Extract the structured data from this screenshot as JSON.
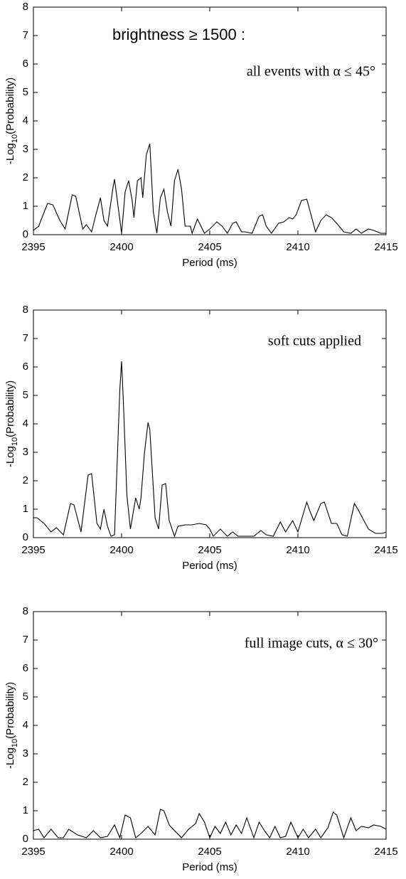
{
  "chart_data": [
    {
      "type": "line",
      "color": "#000000",
      "xlabel": "Period (ms)",
      "ylabel": [
        "-Log",
        "10",
        "(Probability)"
      ],
      "annotations": [
        "brightness ≥ 1500 :",
        "all events with α ≤ 45°"
      ],
      "xlim": [
        2395,
        2415
      ],
      "ylim": [
        0,
        8
      ],
      "xticks": [
        2395,
        2400,
        2405,
        2410,
        2415
      ],
      "yticks": [
        0,
        1,
        2,
        3,
        4,
        5,
        6,
        7,
        8
      ],
      "x": [
        2395,
        2395.3,
        2395.8,
        2396.1,
        2396.5,
        2396.8,
        2397.2,
        2397.4,
        2397.8,
        2398.0,
        2398.3,
        2398.5,
        2398.8,
        2399.0,
        2399.2,
        2399.5,
        2399.6,
        2399.8,
        2400.0,
        2400.2,
        2400.4,
        2400.6,
        2400.7,
        2400.9,
        2401.1,
        2401.2,
        2401.4,
        2401.6,
        2401.8,
        2402.0,
        2402.2,
        2402.4,
        2402.6,
        2402.8,
        2403.0,
        2403.2,
        2403.4,
        2403.6,
        2403.9,
        2404.0,
        2404.3,
        2404.5,
        2404.7,
        2405.0,
        2405.4,
        2405.7,
        2406.0,
        2406.3,
        2406.5,
        2406.8,
        2407.0,
        2407.4,
        2407.8,
        2408.0,
        2408.2,
        2408.5,
        2408.9,
        2409.2,
        2409.5,
        2409.7,
        2409.9,
        2410.2,
        2410.5,
        2410.7,
        2411.0,
        2411.3,
        2411.6,
        2411.9,
        2412.2,
        2412.6,
        2413.0,
        2413.3,
        2413.6,
        2414.0,
        2414.3,
        2414.7,
        2415
      ],
      "values": [
        0.15,
        0.3,
        1.1,
        1.05,
        0.5,
        0.2,
        1.4,
        1.35,
        0.2,
        0.35,
        0.1,
        0.6,
        1.3,
        0.5,
        0.3,
        1.6,
        1.95,
        1.0,
        0.05,
        1.5,
        1.9,
        1.2,
        0.6,
        1.9,
        2.0,
        1.3,
        2.8,
        3.2,
        0.8,
        0.05,
        1.3,
        1.6,
        0.8,
        0.3,
        1.9,
        2.3,
        1.6,
        0.3,
        0.3,
        0.05,
        0.55,
        0.3,
        0.05,
        0.2,
        0.45,
        0.3,
        0.05,
        0.4,
        0.45,
        0.1,
        0.1,
        0.05,
        0.65,
        0.7,
        0.3,
        0.05,
        0.4,
        0.45,
        0.6,
        0.55,
        0.7,
        1.2,
        1.25,
        0.8,
        0.1,
        0.5,
        0.7,
        0.6,
        0.4,
        0.1,
        0.05,
        0.2,
        0.05,
        0.2,
        0.15,
        0.05,
        0.05
      ]
    },
    {
      "type": "line",
      "color": "#000000",
      "xlabel": "Period (ms)",
      "ylabel": [
        "-Log",
        "10",
        "(Probability)"
      ],
      "annotations": [
        "soft cuts applied"
      ],
      "xlim": [
        2395,
        2415
      ],
      "ylim": [
        0,
        8
      ],
      "xticks": [
        2395,
        2400,
        2405,
        2410,
        2415
      ],
      "yticks": [
        0,
        1,
        2,
        3,
        4,
        5,
        6,
        7,
        8
      ],
      "x": [
        2395,
        2395.2,
        2395.6,
        2396.0,
        2396.3,
        2396.7,
        2397.1,
        2397.3,
        2397.7,
        2398.1,
        2398.3,
        2398.6,
        2398.8,
        2399.0,
        2399.2,
        2399.4,
        2399.6,
        2399.9,
        2400.0,
        2400.1,
        2400.3,
        2400.5,
        2400.8,
        2401.0,
        2401.1,
        2401.3,
        2401.5,
        2401.6,
        2401.9,
        2402.1,
        2402.3,
        2402.5,
        2402.7,
        2403.0,
        2403.2,
        2403.6,
        2404.0,
        2404.4,
        2404.8,
        2405.0,
        2405.2,
        2405.6,
        2406.0,
        2406.3,
        2406.6,
        2407.0,
        2407.5,
        2407.9,
        2408.2,
        2408.6,
        2409.0,
        2409.3,
        2409.7,
        2410.0,
        2410.5,
        2410.7,
        2410.9,
        2411.3,
        2411.5,
        2411.9,
        2412.2,
        2412.5,
        2412.8,
        2413.2,
        2413.4,
        2414.0,
        2414.4,
        2414.8,
        2415
      ],
      "values": [
        0.7,
        0.7,
        0.5,
        0.2,
        0.35,
        0.1,
        1.2,
        1.15,
        0.2,
        2.2,
        2.25,
        0.5,
        0.3,
        1.0,
        0.4,
        0.05,
        0.1,
        5.2,
        6.2,
        4.8,
        1.5,
        0.3,
        1.4,
        1.0,
        1.4,
        3.0,
        4.05,
        3.8,
        0.7,
        0.3,
        1.85,
        1.9,
        0.6,
        0.05,
        0.4,
        0.45,
        0.45,
        0.5,
        0.45,
        0.3,
        0.05,
        0.3,
        0.05,
        0.2,
        0.05,
        0.05,
        0.05,
        0.25,
        0.1,
        0.05,
        0.55,
        0.2,
        0.6,
        0.2,
        1.25,
        0.9,
        0.6,
        1.2,
        1.25,
        0.5,
        0.5,
        0.1,
        0.05,
        1.2,
        1.0,
        0.3,
        0.15,
        0.15,
        0.2
      ]
    },
    {
      "type": "line",
      "color": "#000000",
      "xlabel": "Period (ms)",
      "ylabel": [
        "-Log",
        "10",
        "(Probability)"
      ],
      "annotations": [
        "full image cuts, α ≤ 30°"
      ],
      "xlim": [
        2395,
        2415
      ],
      "ylim": [
        0,
        8
      ],
      "xticks": [
        2395,
        2400,
        2405,
        2410,
        2415
      ],
      "yticks": [
        0,
        1,
        2,
        3,
        4,
        5,
        6,
        7,
        8
      ],
      "x": [
        2395,
        2395.3,
        2395.6,
        2396.0,
        2396.4,
        2396.7,
        2397.0,
        2397.5,
        2398.0,
        2398.4,
        2398.8,
        2399.2,
        2399.6,
        2399.9,
        2400.2,
        2400.5,
        2400.8,
        2401.1,
        2401.5,
        2401.9,
        2402.2,
        2402.4,
        2402.7,
        2403.0,
        2403.4,
        2403.8,
        2404.2,
        2404.4,
        2404.7,
        2405.0,
        2405.3,
        2405.6,
        2405.9,
        2406.2,
        2406.5,
        2406.8,
        2407.1,
        2407.5,
        2407.8,
        2408.1,
        2408.4,
        2408.7,
        2409.0,
        2409.3,
        2409.6,
        2410.0,
        2410.3,
        2410.6,
        2411.0,
        2411.3,
        2411.7,
        2412.0,
        2412.2,
        2412.6,
        2413.0,
        2413.3,
        2413.6,
        2414.0,
        2414.3,
        2414.7,
        2415
      ],
      "values": [
        0.3,
        0.35,
        0.05,
        0.35,
        0.05,
        0.05,
        0.35,
        0.15,
        0.05,
        0.3,
        0.05,
        0.1,
        0.5,
        0.05,
        0.85,
        0.75,
        0.05,
        0.2,
        0.45,
        0.15,
        1.05,
        1.0,
        0.5,
        0.3,
        0.05,
        0.35,
        0.55,
        0.9,
        0.6,
        0.05,
        0.45,
        0.2,
        0.6,
        0.15,
        0.5,
        0.2,
        0.75,
        0.05,
        0.6,
        0.3,
        0.05,
        0.45,
        0.05,
        0.1,
        0.6,
        0.05,
        0.35,
        0.05,
        0.35,
        0.05,
        0.4,
        0.95,
        0.85,
        0.05,
        0.75,
        0.3,
        0.45,
        0.4,
        0.5,
        0.45,
        0.35
      ]
    }
  ]
}
